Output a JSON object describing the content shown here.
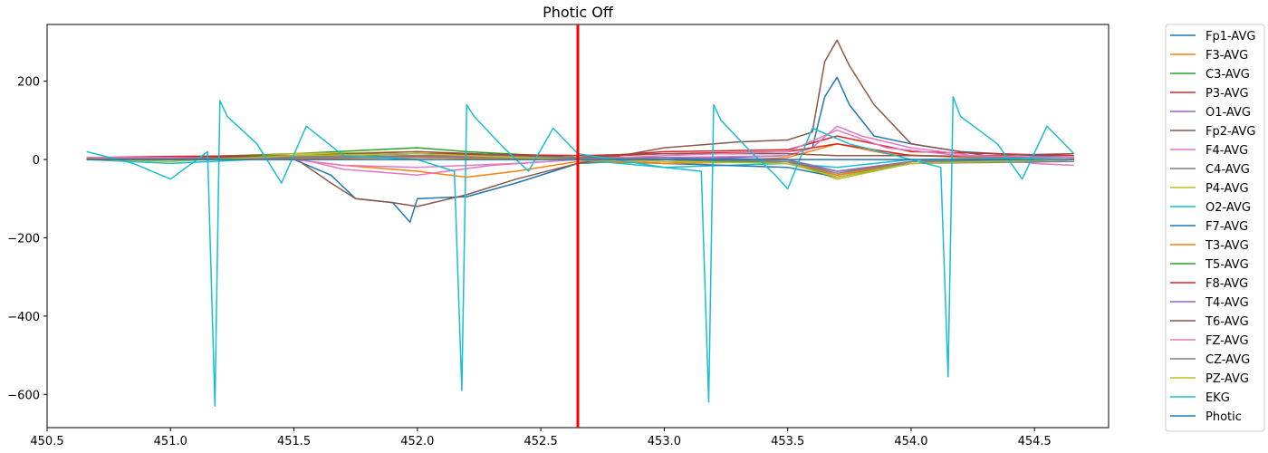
{
  "chart_data": {
    "type": "line",
    "title": "Photic Off",
    "xlabel": "",
    "ylabel": "",
    "xlim": [
      450.5,
      454.8
    ],
    "ylim": [
      -685,
      345
    ],
    "x_ticks": [
      450.5,
      451.0,
      451.5,
      452.0,
      452.5,
      453.0,
      453.5,
      454.0,
      454.5
    ],
    "x_tick_labels": [
      "450.5",
      "451.0",
      "451.5",
      "452.0",
      "452.5",
      "453.0",
      "453.5",
      "454.0",
      "454.5"
    ],
    "y_ticks": [
      200,
      0,
      -200,
      -400,
      -600
    ],
    "y_tick_labels": [
      "200",
      "0",
      "−200",
      "−400",
      "−600"
    ],
    "grid": false,
    "legend_position": "outside-right",
    "marker_line": {
      "x": 452.65,
      "color": "#ff0000"
    },
    "series": [
      {
        "name": "Fp1-AVG",
        "color": "#1f77b4",
        "x": [
          450.66,
          451.0,
          451.5,
          451.65,
          451.75,
          451.9,
          451.97,
          452.0,
          452.2,
          452.4,
          452.65,
          453.0,
          453.5,
          453.6,
          453.65,
          453.7,
          453.75,
          453.85,
          454.0,
          454.2,
          454.5,
          454.66
        ],
        "y": [
          5,
          3,
          0,
          -40,
          -100,
          -110,
          -160,
          -100,
          -95,
          -60,
          -10,
          0,
          10,
          30,
          160,
          210,
          140,
          60,
          40,
          20,
          10,
          10
        ]
      },
      {
        "name": "F3-AVG",
        "color": "#ff7f0e",
        "x": [
          450.66,
          451.0,
          451.5,
          451.7,
          452.0,
          452.2,
          452.4,
          452.65,
          453.0,
          453.5,
          453.7,
          453.9,
          454.2,
          454.66
        ],
        "y": [
          3,
          2,
          0,
          -15,
          -30,
          -45,
          -30,
          -5,
          -10,
          5,
          40,
          15,
          5,
          5
        ]
      },
      {
        "name": "C3-AVG",
        "color": "#2ca02c",
        "x": [
          450.66,
          451.0,
          451.5,
          452.0,
          452.2,
          452.65,
          453.0,
          453.5,
          453.7,
          454.0,
          454.66
        ],
        "y": [
          0,
          5,
          15,
          30,
          20,
          5,
          0,
          -10,
          -40,
          -5,
          0
        ]
      },
      {
        "name": "P3-AVG",
        "color": "#d62728",
        "x": [
          450.66,
          451.0,
          451.5,
          452.0,
          452.5,
          452.65,
          453.0,
          453.5,
          453.7,
          454.0,
          454.66
        ],
        "y": [
          5,
          8,
          10,
          15,
          10,
          5,
          20,
          25,
          60,
          20,
          10
        ]
      },
      {
        "name": "O1-AVG",
        "color": "#9467bd",
        "x": [
          450.66,
          451.0,
          451.5,
          452.0,
          452.65,
          453.0,
          453.5,
          453.7,
          454.0,
          454.66
        ],
        "y": [
          0,
          2,
          5,
          8,
          2,
          0,
          -5,
          -30,
          -10,
          0
        ]
      },
      {
        "name": "Fp2-AVG",
        "color": "#8c564b",
        "x": [
          450.66,
          451.0,
          451.5,
          451.65,
          451.75,
          451.9,
          452.0,
          452.2,
          452.4,
          452.65,
          453.0,
          453.3,
          453.5,
          453.6,
          453.65,
          453.7,
          453.75,
          453.85,
          454.0,
          454.3,
          454.66
        ],
        "y": [
          0,
          2,
          5,
          -60,
          -100,
          -110,
          -120,
          -90,
          -50,
          -10,
          30,
          45,
          50,
          70,
          250,
          305,
          240,
          140,
          40,
          10,
          15
        ]
      },
      {
        "name": "F4-AVG",
        "color": "#e377c2",
        "x": [
          450.66,
          451.0,
          451.5,
          451.7,
          452.0,
          452.3,
          452.65,
          453.0,
          453.5,
          453.6,
          453.7,
          453.8,
          454.0,
          454.5,
          454.66
        ],
        "y": [
          0,
          5,
          5,
          -25,
          -40,
          -15,
          0,
          5,
          10,
          30,
          85,
          60,
          30,
          -10,
          -15
        ]
      },
      {
        "name": "C4-AVG",
        "color": "#7f7f7f",
        "x": [
          450.66,
          451.0,
          451.5,
          452.0,
          452.65,
          453.0,
          453.5,
          453.7,
          454.0,
          454.66
        ],
        "y": [
          0,
          3,
          8,
          15,
          5,
          5,
          0,
          -40,
          -10,
          -5
        ]
      },
      {
        "name": "P4-AVG",
        "color": "#bcbd22",
        "x": [
          450.66,
          451.0,
          451.5,
          452.0,
          452.65,
          453.0,
          453.5,
          453.7,
          454.0,
          454.66
        ],
        "y": [
          0,
          -5,
          15,
          20,
          5,
          -5,
          -5,
          -50,
          -10,
          0
        ]
      },
      {
        "name": "O2-AVG",
        "color": "#17becf",
        "x": [
          450.66,
          451.0,
          451.5,
          452.0,
          452.65,
          453.0,
          453.5,
          453.7,
          454.0,
          454.66
        ],
        "y": [
          0,
          -10,
          5,
          10,
          0,
          -20,
          -10,
          -20,
          0,
          5
        ]
      },
      {
        "name": "F7-AVG",
        "color": "#1f77b4",
        "x": [
          450.66,
          451.0,
          451.5,
          452.0,
          452.65,
          453.0,
          453.5,
          453.7,
          454.0,
          454.66
        ],
        "y": [
          0,
          0,
          2,
          5,
          0,
          -10,
          -20,
          -45,
          -10,
          0
        ]
      },
      {
        "name": "T3-AVG",
        "color": "#ff7f0e",
        "x": [
          450.66,
          451.0,
          451.5,
          452.0,
          452.65,
          453.0,
          453.5,
          453.7,
          454.0,
          454.66
        ],
        "y": [
          0,
          2,
          3,
          5,
          0,
          -10,
          -5,
          -40,
          -5,
          0
        ]
      },
      {
        "name": "T5-AVG",
        "color": "#2ca02c",
        "x": [
          450.66,
          451.0,
          451.5,
          452.0,
          452.65,
          453.0,
          453.5,
          453.7,
          454.0,
          454.66
        ],
        "y": [
          0,
          0,
          5,
          10,
          5,
          0,
          -10,
          -45,
          -10,
          0
        ]
      },
      {
        "name": "F8-AVG",
        "color": "#d62728",
        "x": [
          450.66,
          451.0,
          451.5,
          452.0,
          452.65,
          453.0,
          453.5,
          453.7,
          454.0,
          454.66
        ],
        "y": [
          0,
          5,
          10,
          15,
          10,
          15,
          20,
          40,
          10,
          5
        ]
      },
      {
        "name": "T4-AVG",
        "color": "#9467bd",
        "x": [
          450.66,
          451.0,
          451.5,
          452.0,
          452.65,
          453.0,
          453.5,
          453.7,
          454.0,
          454.66
        ],
        "y": [
          0,
          2,
          5,
          8,
          5,
          5,
          0,
          -30,
          -5,
          0
        ]
      },
      {
        "name": "T6-AVG",
        "color": "#8c564b",
        "x": [
          450.66,
          451.0,
          451.5,
          452.0,
          452.65,
          453.0,
          453.5,
          453.7,
          454.0,
          454.66
        ],
        "y": [
          0,
          3,
          10,
          20,
          5,
          15,
          15,
          10,
          10,
          5
        ]
      },
      {
        "name": "FZ-AVG",
        "color": "#e377c2",
        "x": [
          450.66,
          451.0,
          451.5,
          451.7,
          452.0,
          452.4,
          452.65,
          453.0,
          453.5,
          453.7,
          453.9,
          454.2,
          454.66
        ],
        "y": [
          5,
          5,
          0,
          -15,
          -20,
          -10,
          0,
          10,
          20,
          75,
          30,
          10,
          5
        ]
      },
      {
        "name": "CZ-AVG",
        "color": "#7f7f7f",
        "x": [
          450.66,
          451.0,
          451.5,
          452.0,
          452.65,
          453.0,
          453.5,
          453.7,
          454.0,
          454.66
        ],
        "y": [
          0,
          2,
          5,
          10,
          5,
          0,
          -5,
          -35,
          -5,
          0
        ]
      },
      {
        "name": "PZ-AVG",
        "color": "#bcbd22",
        "x": [
          450.66,
          451.0,
          451.5,
          452.0,
          452.65,
          453.0,
          453.5,
          453.7,
          454.0,
          454.66
        ],
        "y": [
          0,
          -5,
          10,
          15,
          0,
          -5,
          -10,
          -45,
          -10,
          0
        ]
      },
      {
        "name": "EKG",
        "color": "#17becf",
        "x": [
          450.66,
          450.85,
          451.0,
          451.15,
          451.18,
          451.2,
          451.23,
          451.35,
          451.45,
          451.55,
          451.7,
          452.0,
          452.15,
          452.18,
          452.2,
          452.23,
          452.35,
          452.45,
          452.55,
          452.65,
          453.0,
          453.15,
          453.18,
          453.2,
          453.23,
          453.35,
          453.45,
          453.5,
          453.6,
          453.75,
          454.0,
          454.12,
          454.15,
          454.17,
          454.2,
          454.35,
          454.45,
          454.55,
          454.66
        ],
        "y": [
          20,
          -10,
          -50,
          20,
          -630,
          150,
          110,
          40,
          -60,
          85,
          10,
          0,
          -30,
          -590,
          140,
          110,
          30,
          -30,
          80,
          15,
          -20,
          -30,
          -620,
          140,
          100,
          20,
          -40,
          -75,
          80,
          40,
          0,
          -20,
          -555,
          160,
          110,
          40,
          -50,
          85,
          15
        ]
      },
      {
        "name": "Photic",
        "color": "#1f77b4",
        "x": [
          450.66,
          454.66
        ],
        "y": [
          0,
          0
        ]
      }
    ]
  }
}
